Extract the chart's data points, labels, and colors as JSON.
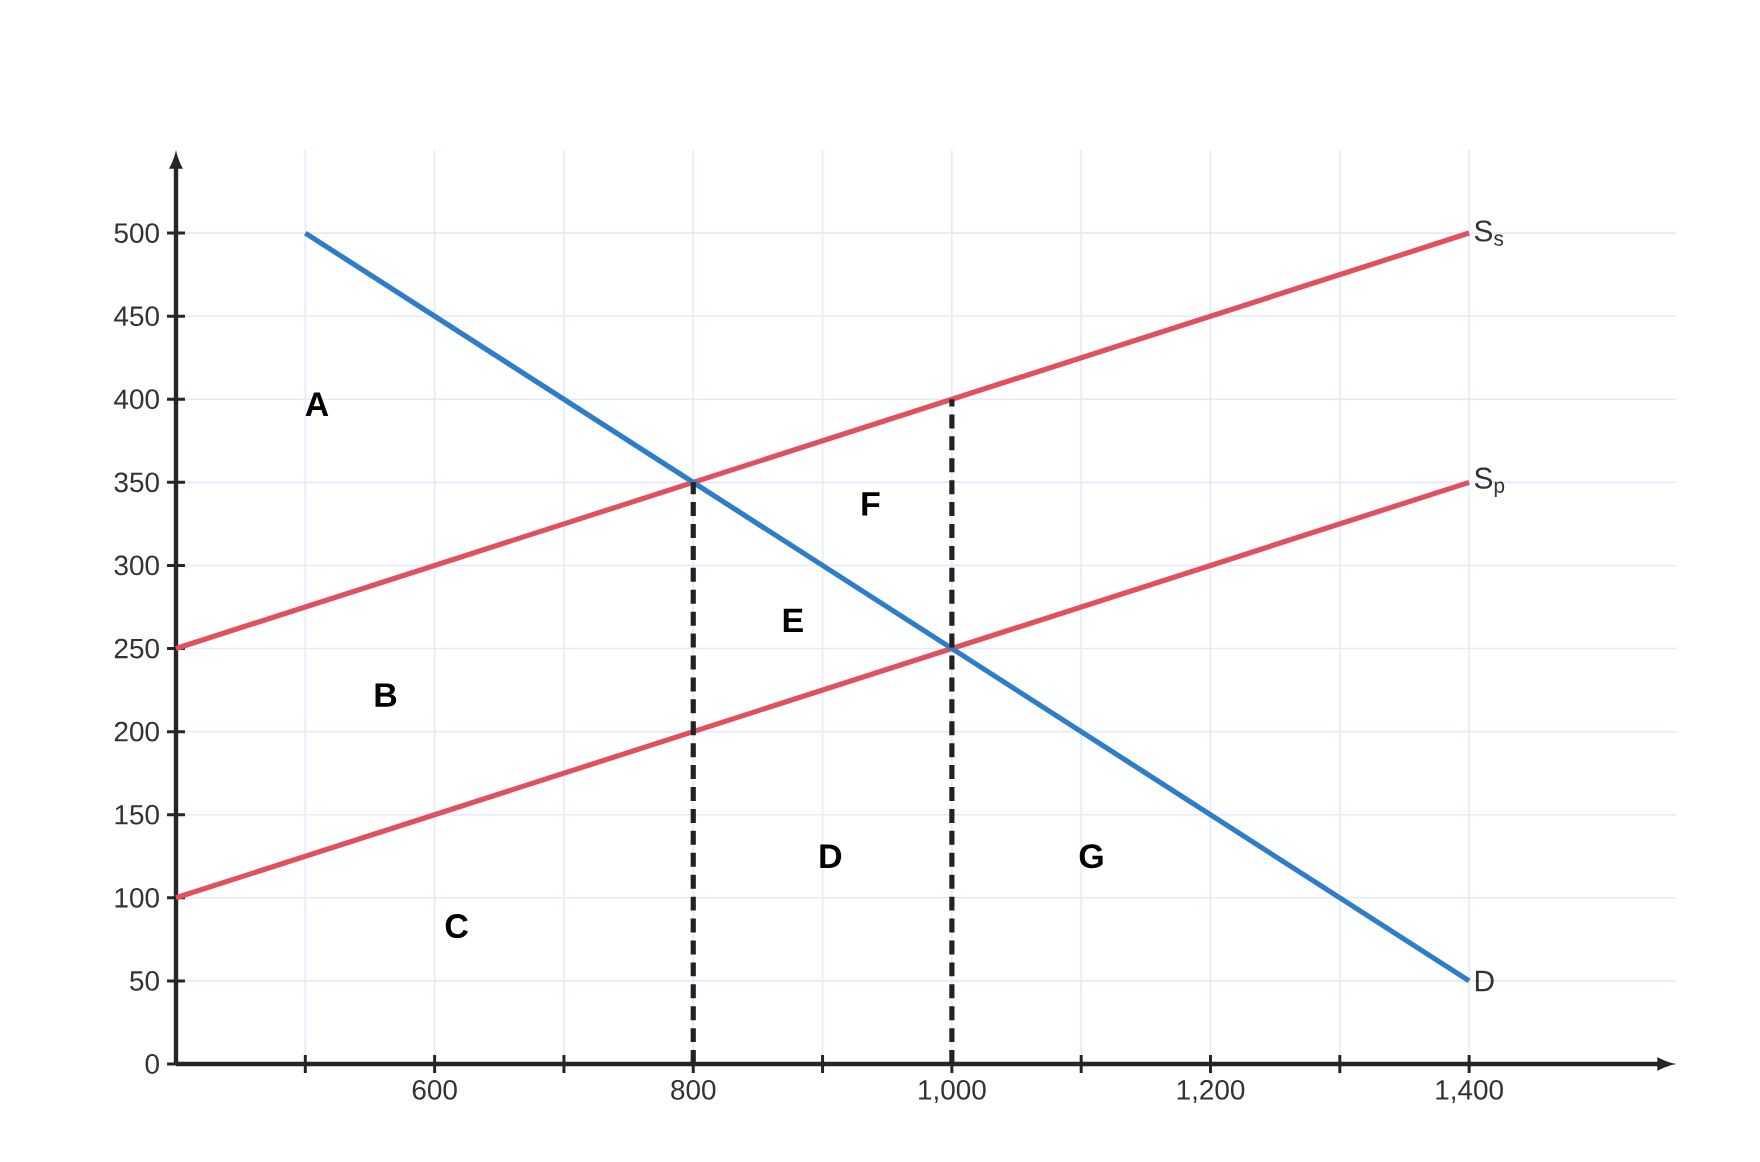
{
  "chart_data": {
    "type": "line",
    "xlim": [
      400,
      1560
    ],
    "ylim": [
      0,
      550
    ],
    "xticks": [
      {
        "value": 500,
        "label": null
      },
      {
        "value": 600,
        "label": "600"
      },
      {
        "value": 700,
        "label": null
      },
      {
        "value": 800,
        "label": "800"
      },
      {
        "value": 900,
        "label": null
      },
      {
        "value": 1000,
        "label": "1,000"
      },
      {
        "value": 1100,
        "label": null
      },
      {
        "value": 1200,
        "label": "1,200"
      },
      {
        "value": 1300,
        "label": null
      },
      {
        "value": 1400,
        "label": "1,400"
      }
    ],
    "yticks": [
      0,
      50,
      100,
      150,
      200,
      250,
      300,
      350,
      400,
      450,
      500
    ],
    "grid": true,
    "legend": false,
    "series": [
      {
        "name": "S$_{s}$",
        "color": "#e0505e",
        "x": [
          400,
          1400
        ],
        "values": [
          250,
          500
        ]
      },
      {
        "name": "S$_{p}$",
        "color": "#e0505e",
        "x": [
          400,
          1400
        ],
        "values": [
          100,
          350
        ]
      },
      {
        "name": "D",
        "color": "#2e7dc8",
        "x": [
          500,
          1400
        ],
        "values": [
          500,
          50
        ]
      },
      {
        "color": "#222222",
        "line_style": "dashed",
        "x": [
          800,
          800
        ],
        "values": [
          0,
          350
        ]
      },
      {
        "color": "#222222",
        "line_style": "dashed",
        "x": [
          1000,
          1000
        ],
        "values": [
          0,
          400
        ]
      }
    ],
    "annotations": [
      "A",
      "B",
      "C",
      "D",
      "E",
      "F",
      "G"
    ]
  }
}
